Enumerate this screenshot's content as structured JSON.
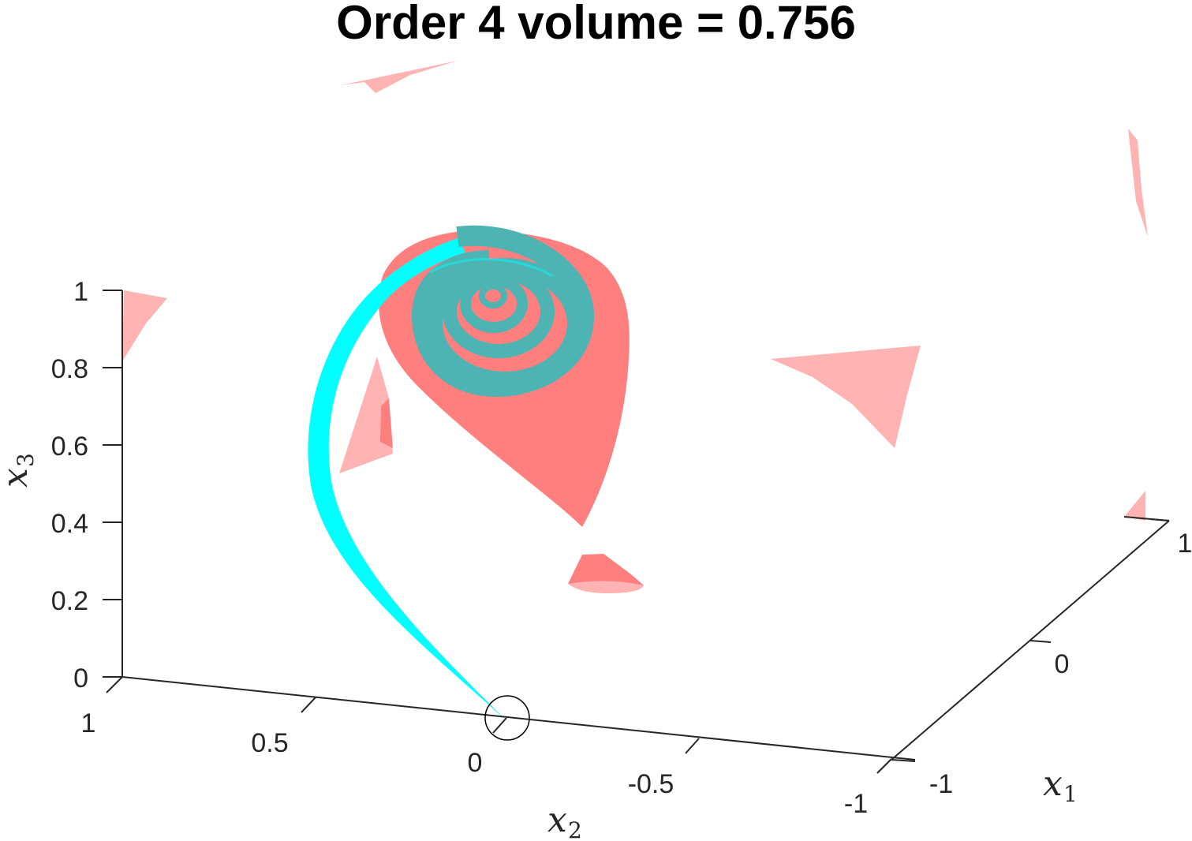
{
  "chart_data": {
    "type": "scatter",
    "title": "Order 4 volume = 0.756",
    "axes": {
      "x1": {
        "label": "x",
        "subscript": "1",
        "ticks": [
          "-1",
          "0",
          "1"
        ],
        "lim": [
          -1,
          1
        ]
      },
      "x2": {
        "label": "x",
        "subscript": "2",
        "ticks": [
          "1",
          "0.5",
          "0",
          "-0.5",
          "-1"
        ],
        "lim": [
          -1,
          1
        ]
      },
      "x3": {
        "label": "x",
        "subscript": "3",
        "ticks": [
          "0",
          "0.2",
          "0.4",
          "0.6",
          "0.8",
          "1"
        ],
        "lim": [
          0,
          1
        ]
      }
    },
    "grid": false,
    "legend": "none",
    "colors": {
      "volume_surface": "#ff7f7f",
      "volume_surface_light": "#ffb3b3",
      "trajectory_tube": "#00ffff",
      "trajectory_spiral": "#4db3b3",
      "origin_marker": "#000000",
      "axis": "#262626"
    }
  }
}
